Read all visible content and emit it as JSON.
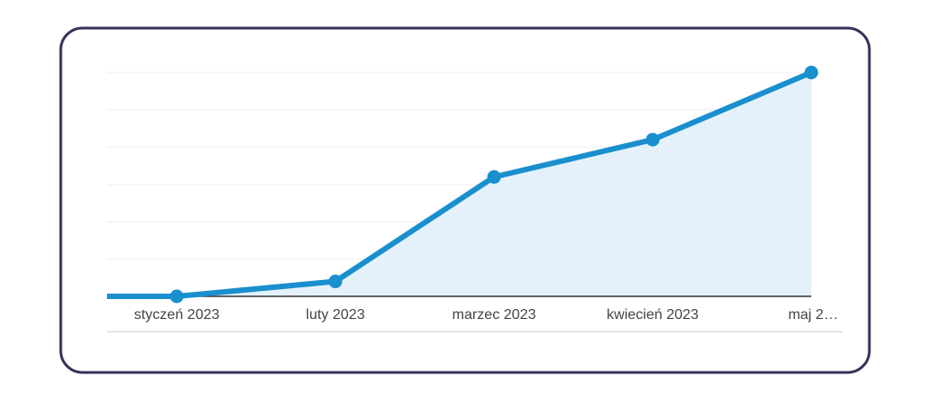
{
  "chart_data": {
    "type": "area",
    "categories": [
      "styczeń 2023",
      "luty 2023",
      "marzec 2023",
      "kwiecień 2023",
      "maj 2…"
    ],
    "values": [
      0,
      0.4,
      3.2,
      4.2,
      6
    ],
    "color": "#1a8fce",
    "ylim": [
      0,
      6
    ]
  }
}
